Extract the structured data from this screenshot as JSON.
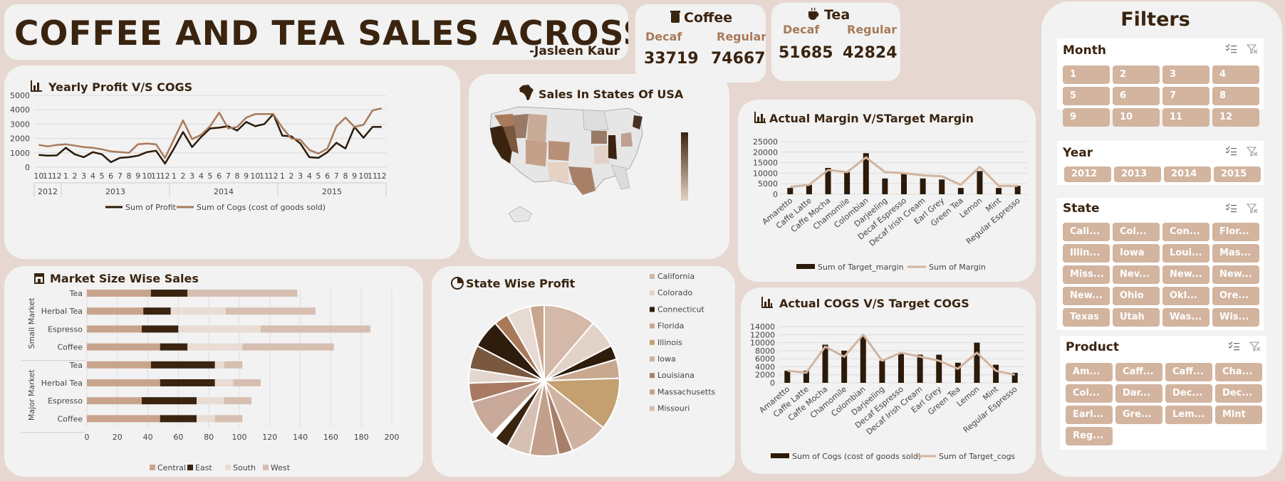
{
  "header": {
    "title": "COFFEE AND TEA SALES ACROSS US",
    "author": "-Jasleen Kaur"
  },
  "kpi": {
    "coffee": {
      "title": "Coffee",
      "decaf_label": "Decaf",
      "regular_label": "Regular",
      "decaf": "33719",
      "regular": "74667"
    },
    "tea": {
      "title": "Tea",
      "decaf_label": "Decaf",
      "regular_label": "Regular",
      "decaf": "51685",
      "regular": "42824"
    }
  },
  "titles": {
    "yearly": "Yearly Profit V/S COGS",
    "map": "Sales In States Of USA",
    "margin": "Actual Margin V/STarget Margin",
    "market": "Market Size Wise Sales",
    "statepie": "State Wise Profit",
    "cogs": "Actual COGS V/S Target COGS",
    "filters": "Filters"
  },
  "colors": {
    "dark": "#3a2410",
    "brown": "#a87a5a",
    "tan": "#d2b49f",
    "light": "#e8d8cd",
    "card": "#f2f2f2",
    "bg": "#e6d8d0"
  },
  "chart_data": [
    {
      "id": "yearly",
      "type": "line",
      "title": "Yearly Profit V/S COGS",
      "x": [
        "10",
        "11",
        "12",
        "1",
        "2",
        "3",
        "4",
        "5",
        "6",
        "7",
        "8",
        "9",
        "10",
        "11",
        "12",
        "1",
        "2",
        "3",
        "4",
        "5",
        "6",
        "7",
        "8",
        "9",
        "10",
        "11",
        "12",
        "1",
        "2",
        "3",
        "4",
        "5",
        "6",
        "7",
        "8",
        "9",
        "10",
        "11",
        "12"
      ],
      "groups": [
        {
          "label": "2012",
          "count": 3
        },
        {
          "label": "2013",
          "count": 12
        },
        {
          "label": "2014",
          "count": 12
        },
        {
          "label": "2015",
          "count": 12
        }
      ],
      "yticks": [
        0,
        1000,
        2000,
        3000,
        4000,
        5000
      ],
      "ylim": [
        0,
        5000
      ],
      "series": [
        {
          "name": "Sum of Profit",
          "color": "#2b1a0a",
          "values": [
            850,
            800,
            820,
            1350,
            900,
            700,
            1050,
            900,
            350,
            650,
            700,
            800,
            1050,
            1150,
            250,
            1300,
            2450,
            1400,
            2100,
            2700,
            2750,
            2850,
            2550,
            3150,
            2850,
            3000,
            3700,
            2200,
            2150,
            1650,
            700,
            650,
            1050,
            1700,
            1300,
            2800,
            2050,
            2800,
            2800
          ]
        },
        {
          "name": "Sum of Cogs (cost of goods sold)",
          "color": "#a87a5a",
          "values": [
            1550,
            1450,
            1550,
            1600,
            1500,
            1400,
            1350,
            1250,
            1100,
            1050,
            1000,
            1600,
            1650,
            1600,
            650,
            1950,
            3250,
            1950,
            2250,
            2850,
            3800,
            2700,
            2800,
            3450,
            3700,
            3700,
            3700,
            2750,
            2000,
            1900,
            1200,
            950,
            1300,
            2850,
            3450,
            2800,
            2950,
            3950,
            4100
          ]
        }
      ]
    },
    {
      "id": "margin",
      "type": "bar",
      "title": "Actual Margin V/STarget Margin",
      "categories": [
        "Amaretto",
        "Caffe Latte",
        "Caffe Mocha",
        "Chamomile",
        "Colombian",
        "Darjeeling",
        "Decaf Espresso",
        "Decaf Irish Cream",
        "Earl Grey",
        "Green Tea",
        "Lemon",
        "Mint",
        "Regular Espresso"
      ],
      "yticks": [
        0,
        5000,
        10000,
        15000,
        20000,
        25000
      ],
      "ylim": [
        0,
        25000
      ],
      "series": [
        {
          "name": "Sum of Target_margin",
          "kind": "bar",
          "color": "#2b1a0a",
          "values": [
            3000,
            4500,
            12500,
            10500,
            19500,
            7500,
            10000,
            7500,
            7000,
            3000,
            11000,
            3000,
            4000
          ]
        },
        {
          "name": "Sum of Margin",
          "kind": "line",
          "color": "#d2b49f",
          "values": [
            3500,
            4500,
            11500,
            10500,
            17500,
            10500,
            10000,
            9000,
            8500,
            4500,
            13000,
            4000,
            4000
          ]
        }
      ]
    },
    {
      "id": "market",
      "type": "bar",
      "orientation": "horizontal",
      "stacked": true,
      "title": "Market Size Wise Sales",
      "groups": [
        {
          "label": "Small Market",
          "categories": [
            "Tea",
            "Herbal Tea",
            "Espresso",
            "Coffee"
          ]
        },
        {
          "label": "Major Market",
          "categories": [
            "Tea",
            "Herbal Tea",
            "Espresso",
            "Coffee"
          ]
        }
      ],
      "xticks": [
        0,
        20,
        40,
        60,
        80,
        100,
        120,
        140,
        160,
        180,
        200
      ],
      "xlim": [
        0,
        200
      ],
      "series": [
        {
          "name": "Central",
          "color": "#c9a48c",
          "values": [
            42,
            37,
            36,
            48,
            42,
            48,
            36,
            48
          ]
        },
        {
          "name": "East",
          "color": "#3a2410",
          "values": [
            24,
            18,
            24,
            18,
            42,
            36,
            36,
            24
          ]
        },
        {
          "name": "South",
          "color": "#e8dcd4",
          "values": [
            0,
            36,
            54,
            36,
            6,
            12,
            18,
            12
          ]
        },
        {
          "name": "West",
          "color": "#d6bfb1",
          "values": [
            72,
            59,
            72,
            60,
            12,
            18,
            18,
            18
          ]
        }
      ]
    },
    {
      "id": "statepie",
      "type": "pie",
      "title": "State Wise Profit",
      "legend": [
        "California",
        "Colorado",
        "Connecticut",
        "Florida",
        "Illinois",
        "Iowa",
        "Louisiana",
        "Massachusetts",
        "Missouri"
      ],
      "slices": [
        {
          "value": 11,
          "color": "#d4b8a8"
        },
        {
          "value": 6,
          "color": "#e2d2c8"
        },
        {
          "value": 3,
          "color": "#2e1c0c"
        },
        {
          "value": 4,
          "color": "#c9a890"
        },
        {
          "value": 11,
          "color": "#c4a070"
        },
        {
          "value": 8,
          "color": "#d0b2a0"
        },
        {
          "value": 3,
          "color": "#a8806a"
        },
        {
          "value": 6,
          "color": "#c2a08c"
        },
        {
          "value": 5,
          "color": "#d6c0b4"
        },
        {
          "value": 3,
          "color": "#3a2410"
        },
        {
          "value": 1,
          "color": "#ffffff"
        },
        {
          "value": 8,
          "color": "#c8a898"
        },
        {
          "value": 4,
          "color": "#a87a64"
        },
        {
          "value": 3,
          "color": "#e2d6ce"
        },
        {
          "value": 5,
          "color": "#7a5840"
        },
        {
          "value": 6,
          "color": "#2e1c0c"
        },
        {
          "value": 3,
          "color": "#a87a5a"
        },
        {
          "value": 5,
          "color": "#e6dad2"
        },
        {
          "value": 3,
          "color": "#c8a68e"
        }
      ]
    },
    {
      "id": "cogs",
      "type": "bar",
      "title": "Actual COGS V/S Target COGS",
      "categories": [
        "Amaretto",
        "Caffe Latte",
        "Caffe Mocha",
        "Chamomile",
        "Colombian",
        "Darjeeling",
        "Decaf Espresso",
        "Decaf Irish Cream",
        "Earl Grey",
        "Green Tea",
        "Lemon",
        "Mint",
        "Regular Espresso"
      ],
      "yticks": [
        0,
        2000,
        4000,
        6000,
        8000,
        10000,
        12000,
        14000
      ],
      "ylim": [
        0,
        14000
      ],
      "series": [
        {
          "name": "Sum of Cogs (cost of goods sold)",
          "kind": "bar",
          "color": "#2b1a0a",
          "values": [
            3000,
            3000,
            9500,
            8000,
            11500,
            5500,
            7500,
            7000,
            7000,
            5000,
            10000,
            4500,
            2500
          ]
        },
        {
          "name": "Sum of Target_cogs",
          "kind": "line",
          "color": "#d2b49f",
          "values": [
            3000,
            2500,
            9000,
            6500,
            12000,
            5500,
            7500,
            6500,
            5500,
            3500,
            7500,
            3000,
            2000
          ]
        }
      ]
    }
  ],
  "filters": {
    "month": {
      "title": "Month",
      "items": [
        "1",
        "2",
        "3",
        "4",
        "5",
        "6",
        "7",
        "8",
        "9",
        "10",
        "11",
        "12"
      ]
    },
    "year": {
      "title": "Year",
      "items": [
        "2012",
        "2013",
        "2014",
        "2015"
      ]
    },
    "state": {
      "title": "State",
      "items": [
        "Cali...",
        "Col...",
        "Con...",
        "Flor...",
        "Illin...",
        "Iowa",
        "Loui...",
        "Mas...",
        "Miss...",
        "Nev...",
        "New...",
        "New...",
        "New...",
        "Ohio",
        "Okl...",
        "Ore...",
        "Texas",
        "Utah",
        "Was...",
        "Wis..."
      ]
    },
    "product": {
      "title": "Product",
      "items": [
        "Am...",
        "Caff...",
        "Caff...",
        "Cha...",
        "Col...",
        "Dar...",
        "Dec...",
        "Dec...",
        "Earl...",
        "Gre...",
        "Lem...",
        "Mint",
        "Reg..."
      ]
    }
  }
}
